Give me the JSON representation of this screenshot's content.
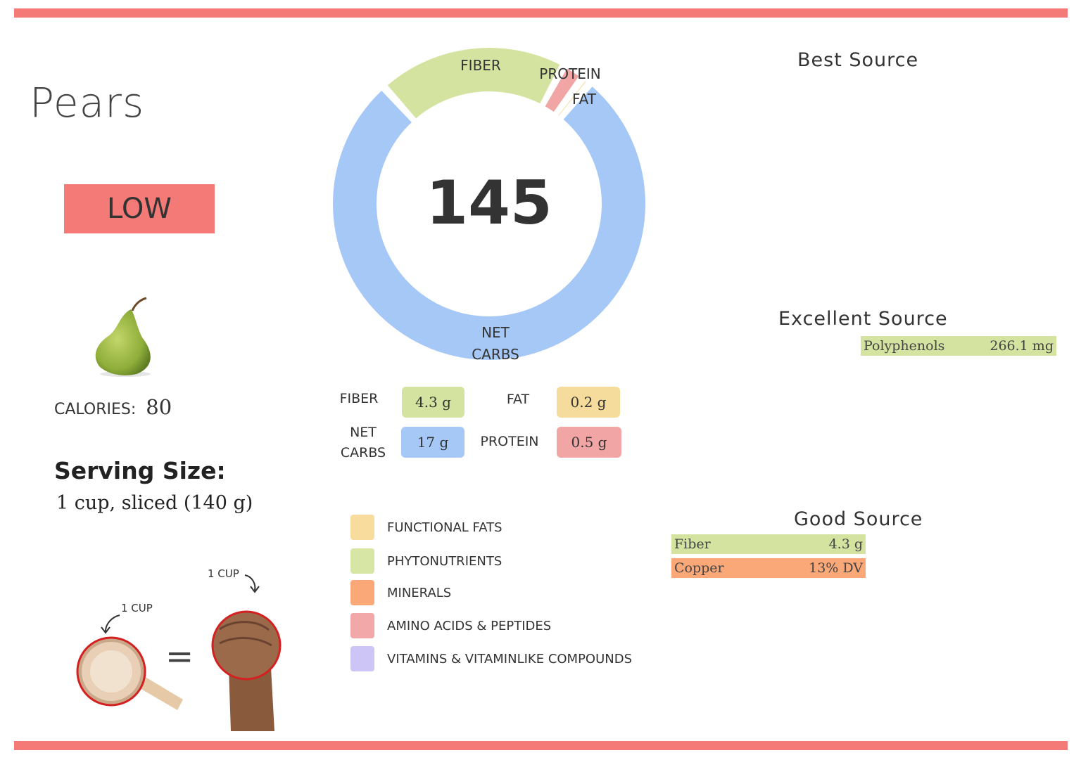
{
  "food": {
    "name": "Pears",
    "rating": "LOW",
    "calories_label": "CALORIES:",
    "calories_value": "80",
    "serving_label": "Serving Size:",
    "serving_value": "1 cup, sliced (140 g)",
    "image_icon": "pear-icon"
  },
  "cup_illustration": {
    "cup_label_1": "1 CUP",
    "cup_label_2": "1 CUP",
    "equals": "="
  },
  "donut": {
    "center_value": "145",
    "labels": {
      "fiber": "FIBER",
      "protein": "PROTEIN",
      "fat": "FAT",
      "net_carbs_1": "NET",
      "net_carbs_2": "CARBS"
    },
    "colors": {
      "fiber": "#d4e4a0",
      "protein": "#f2a5a5",
      "fat": "#f6dc9c",
      "net_carbs": "#a6c8f7"
    },
    "values_g": {
      "net_carbs": 17,
      "fiber": 4.3,
      "protein": 0.5,
      "fat": 0.2
    }
  },
  "macros": {
    "fiber_label": "FIBER",
    "fiber_value": "4.3 g",
    "fat_label": "FAT",
    "fat_value": "0.2 g",
    "net_carbs_label_1": "NET",
    "net_carbs_label_2": "CARBS",
    "net_carbs_value": "17 g",
    "protein_label": "PROTEIN",
    "protein_value": "0.5 g"
  },
  "legend": [
    {
      "label": "FUNCTIONAL  FATS",
      "color": "#f8dc9e"
    },
    {
      "label": "PHYTONUTRIENTS",
      "color": "#d7e6a5"
    },
    {
      "label": "MINERALS",
      "color": "#fba878"
    },
    {
      "label": "AMINO ACIDS & PEPTIDES",
      "color": "#f2a8a8"
    },
    {
      "label": "VITAMINS & VITAMINLIKE COMPOUNDS",
      "color": "#cdc5f5"
    }
  ],
  "sources": {
    "best_heading": "Best Source",
    "excellent_heading": "Excellent Source",
    "excellent": [
      {
        "name": "Polyphenols",
        "value": "266.1 mg",
        "color": "#d4e4a0"
      }
    ],
    "good_heading": "Good Source",
    "good": [
      {
        "name": "Fiber",
        "value": "4.3 g",
        "color": "#d4e4a0"
      },
      {
        "name": "Copper",
        "value": "13% DV",
        "color": "#fba878"
      }
    ]
  },
  "colors": {
    "accent": "#f47a78"
  }
}
